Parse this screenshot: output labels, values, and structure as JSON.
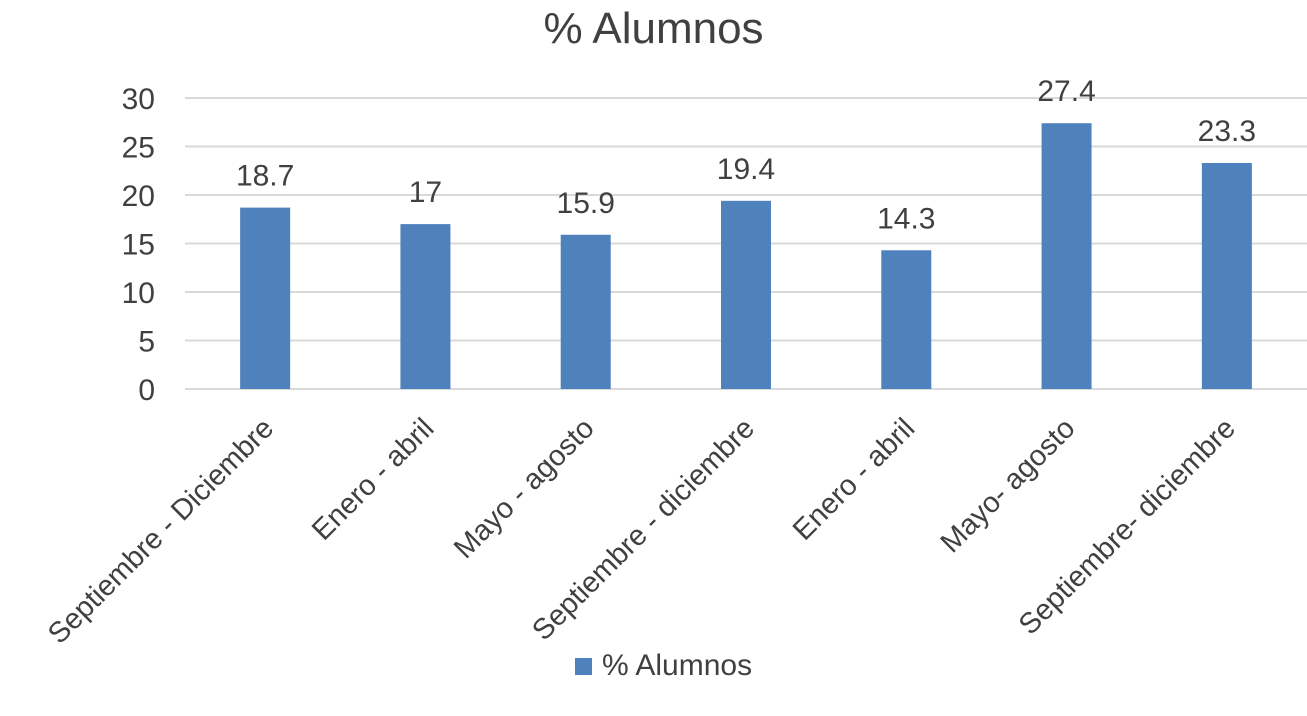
{
  "chart_data": {
    "type": "bar",
    "title": "% Alumnos",
    "categories": [
      "Septiembre - Diciembre",
      "Enero      -   abril",
      "Mayo      -     agosto",
      "Septiembre - diciembre",
      "Enero      -       abril",
      "Mayo- agosto",
      "Septiembre- diciembre"
    ],
    "series": [
      {
        "name": "% Alumnos",
        "values": [
          18.7,
          17,
          15.9,
          19.4,
          14.3,
          27.4,
          23.3
        ],
        "color": "#4f81bd"
      }
    ],
    "data_labels": [
      "18.7",
      "17",
      "15.9",
      "19.4",
      "14.3",
      "27.4",
      "23.3"
    ],
    "y_ticks": [
      "0",
      "5",
      "10",
      "15",
      "20",
      "25",
      "30"
    ],
    "ylim": [
      0,
      30
    ],
    "xlabel": "",
    "ylabel": "",
    "grid": true,
    "legend_position": "bottom",
    "colors": {
      "bar": "#4f81bd",
      "grid": "#d9d9d9",
      "text": "#404040"
    }
  }
}
